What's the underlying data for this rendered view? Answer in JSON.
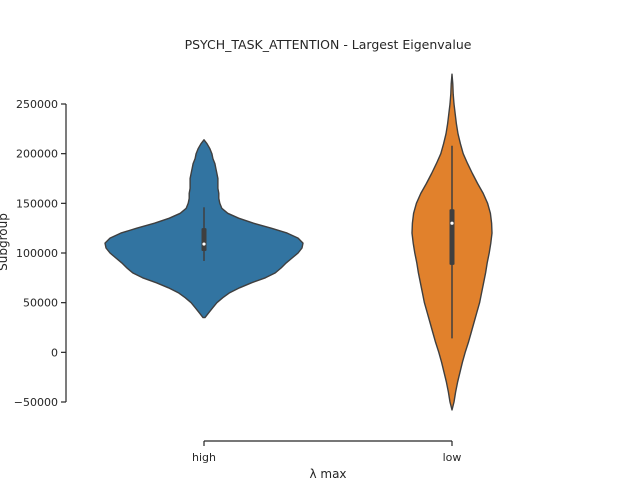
{
  "chart_data": {
    "type": "violin",
    "title": "PSYCH_TASK_ATTENTION - Largest Eigenvalue",
    "xlabel": "λ  max",
    "ylabel": "Subgroup",
    "categories": [
      "high",
      "low"
    ],
    "ylim": [
      -50000,
      250000
    ],
    "yticks": [
      -50000,
      0,
      50000,
      100000,
      150000,
      200000,
      250000
    ],
    "ytick_labels": [
      "−50000",
      "0",
      "50000",
      "100000",
      "150000",
      "200000",
      "250000"
    ],
    "grid": false,
    "series": [
      {
        "category": "high",
        "color": "#3274a1",
        "min": 92000,
        "q1": 102000,
        "median": 109000,
        "q3": 125000,
        "max": 146000,
        "kde_min": 35000,
        "kde_max": 214000,
        "density": [
          [
            35000,
            0.01
          ],
          [
            40000,
            0.05
          ],
          [
            45000,
            0.09
          ],
          [
            50000,
            0.13
          ],
          [
            55000,
            0.19
          ],
          [
            60000,
            0.26
          ],
          [
            65000,
            0.36
          ],
          [
            70000,
            0.48
          ],
          [
            75000,
            0.62
          ],
          [
            80000,
            0.72
          ],
          [
            85000,
            0.78
          ],
          [
            90000,
            0.83
          ],
          [
            95000,
            0.89
          ],
          [
            100000,
            0.95
          ],
          [
            105000,
            0.99
          ],
          [
            110000,
            1.0
          ],
          [
            115000,
            0.95
          ],
          [
            120000,
            0.84
          ],
          [
            125000,
            0.68
          ],
          [
            130000,
            0.5
          ],
          [
            135000,
            0.35
          ],
          [
            140000,
            0.24
          ],
          [
            145000,
            0.18
          ],
          [
            150000,
            0.16
          ],
          [
            155000,
            0.15
          ],
          [
            160000,
            0.15
          ],
          [
            165000,
            0.14
          ],
          [
            170000,
            0.14
          ],
          [
            175000,
            0.14
          ],
          [
            180000,
            0.13
          ],
          [
            185000,
            0.12
          ],
          [
            190000,
            0.11
          ],
          [
            195000,
            0.09
          ],
          [
            200000,
            0.08
          ],
          [
            205000,
            0.06
          ],
          [
            210000,
            0.03
          ],
          [
            214000,
            0.0
          ]
        ]
      },
      {
        "category": "low",
        "color": "#e1812c",
        "min": 14000,
        "q1": 88000,
        "median": 130000,
        "q3": 144000,
        "max": 208000,
        "kde_min": -58000,
        "kde_max": 280000,
        "density": [
          [
            -58000,
            0.0
          ],
          [
            -50000,
            0.05
          ],
          [
            -40000,
            0.09
          ],
          [
            -30000,
            0.14
          ],
          [
            -20000,
            0.2
          ],
          [
            -10000,
            0.26
          ],
          [
            0,
            0.33
          ],
          [
            10000,
            0.41
          ],
          [
            20000,
            0.48
          ],
          [
            30000,
            0.55
          ],
          [
            40000,
            0.62
          ],
          [
            50000,
            0.69
          ],
          [
            60000,
            0.74
          ],
          [
            70000,
            0.79
          ],
          [
            80000,
            0.84
          ],
          [
            90000,
            0.88
          ],
          [
            100000,
            0.93
          ],
          [
            110000,
            0.97
          ],
          [
            120000,
            1.0
          ],
          [
            130000,
            0.99
          ],
          [
            140000,
            0.96
          ],
          [
            150000,
            0.89
          ],
          [
            160000,
            0.78
          ],
          [
            170000,
            0.64
          ],
          [
            180000,
            0.51
          ],
          [
            190000,
            0.39
          ],
          [
            200000,
            0.28
          ],
          [
            210000,
            0.21
          ],
          [
            220000,
            0.15
          ],
          [
            230000,
            0.11
          ],
          [
            240000,
            0.08
          ],
          [
            250000,
            0.05
          ],
          [
            260000,
            0.03
          ],
          [
            270000,
            0.02
          ],
          [
            280000,
            0.0
          ]
        ]
      }
    ]
  }
}
